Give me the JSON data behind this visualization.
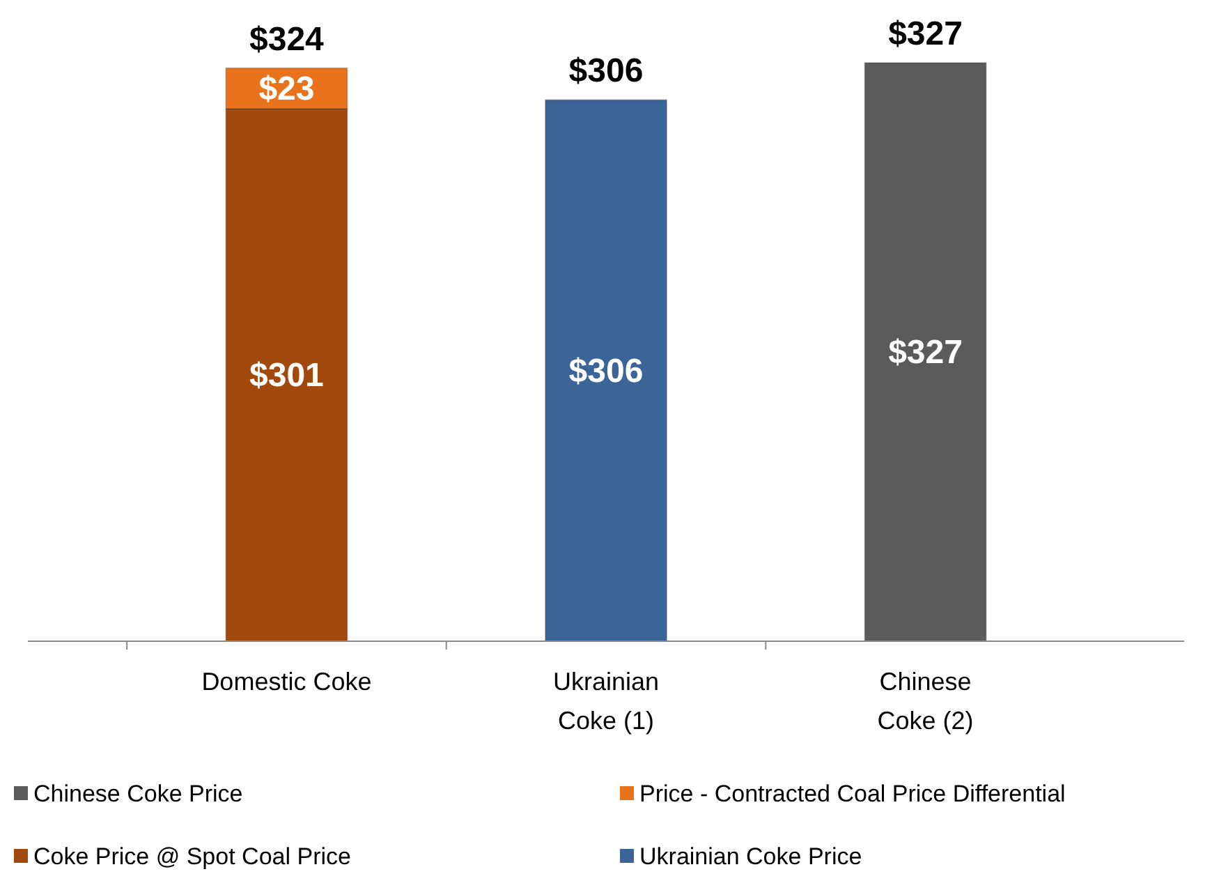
{
  "chart_data": {
    "type": "bar",
    "stacked": true,
    "categories": [
      "Domestic Coke",
      "Ukrainian Coke (1)",
      "Chinese Coke (2)"
    ],
    "series": [
      {
        "name": "Coke Price @ Spot Coal Price",
        "color": "#a24a0e",
        "values": [
          301,
          null,
          null
        ],
        "value_labels": [
          "$301",
          null,
          null
        ]
      },
      {
        "name": "Price - Contracted Coal Price Differential",
        "color": "#e8731c",
        "values": [
          23,
          null,
          null
        ],
        "value_labels": [
          "$23",
          null,
          null
        ]
      },
      {
        "name": "Ukrainian Coke Price",
        "color": "#3b6597",
        "values": [
          null,
          306,
          null
        ],
        "value_labels": [
          null,
          "$306",
          null
        ]
      },
      {
        "name": "Chinese Coke Price",
        "color": "#5b5b5b",
        "values": [
          null,
          null,
          327
        ],
        "value_labels": [
          null,
          null,
          "$327"
        ]
      }
    ],
    "totals": [
      "$324",
      "$306",
      "$327"
    ],
    "legend": "bottom"
  }
}
